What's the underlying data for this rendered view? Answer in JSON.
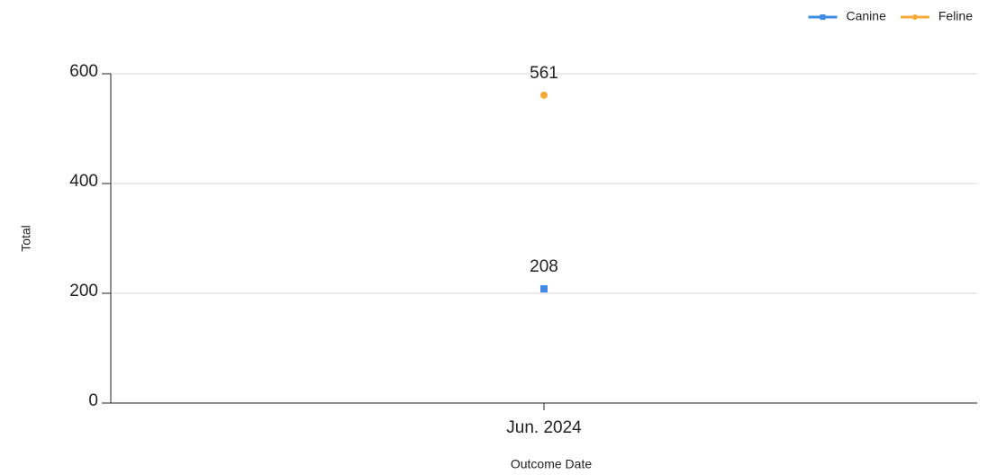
{
  "chart_data": {
    "type": "line",
    "categories": [
      "Jun. 2024"
    ],
    "series": [
      {
        "name": "Canine",
        "color": "#3f8be3",
        "marker": "square",
        "values": [
          208
        ]
      },
      {
        "name": "Feline",
        "color": "#f4a93b",
        "marker": "circle",
        "values": [
          561
        ]
      }
    ],
    "ylim": [
      0,
      600
    ],
    "yticks": [
      0,
      200,
      400,
      600
    ],
    "grid": true,
    "y_label": "Total",
    "x_label": "Outcome Date",
    "legend": "top-right"
  }
}
